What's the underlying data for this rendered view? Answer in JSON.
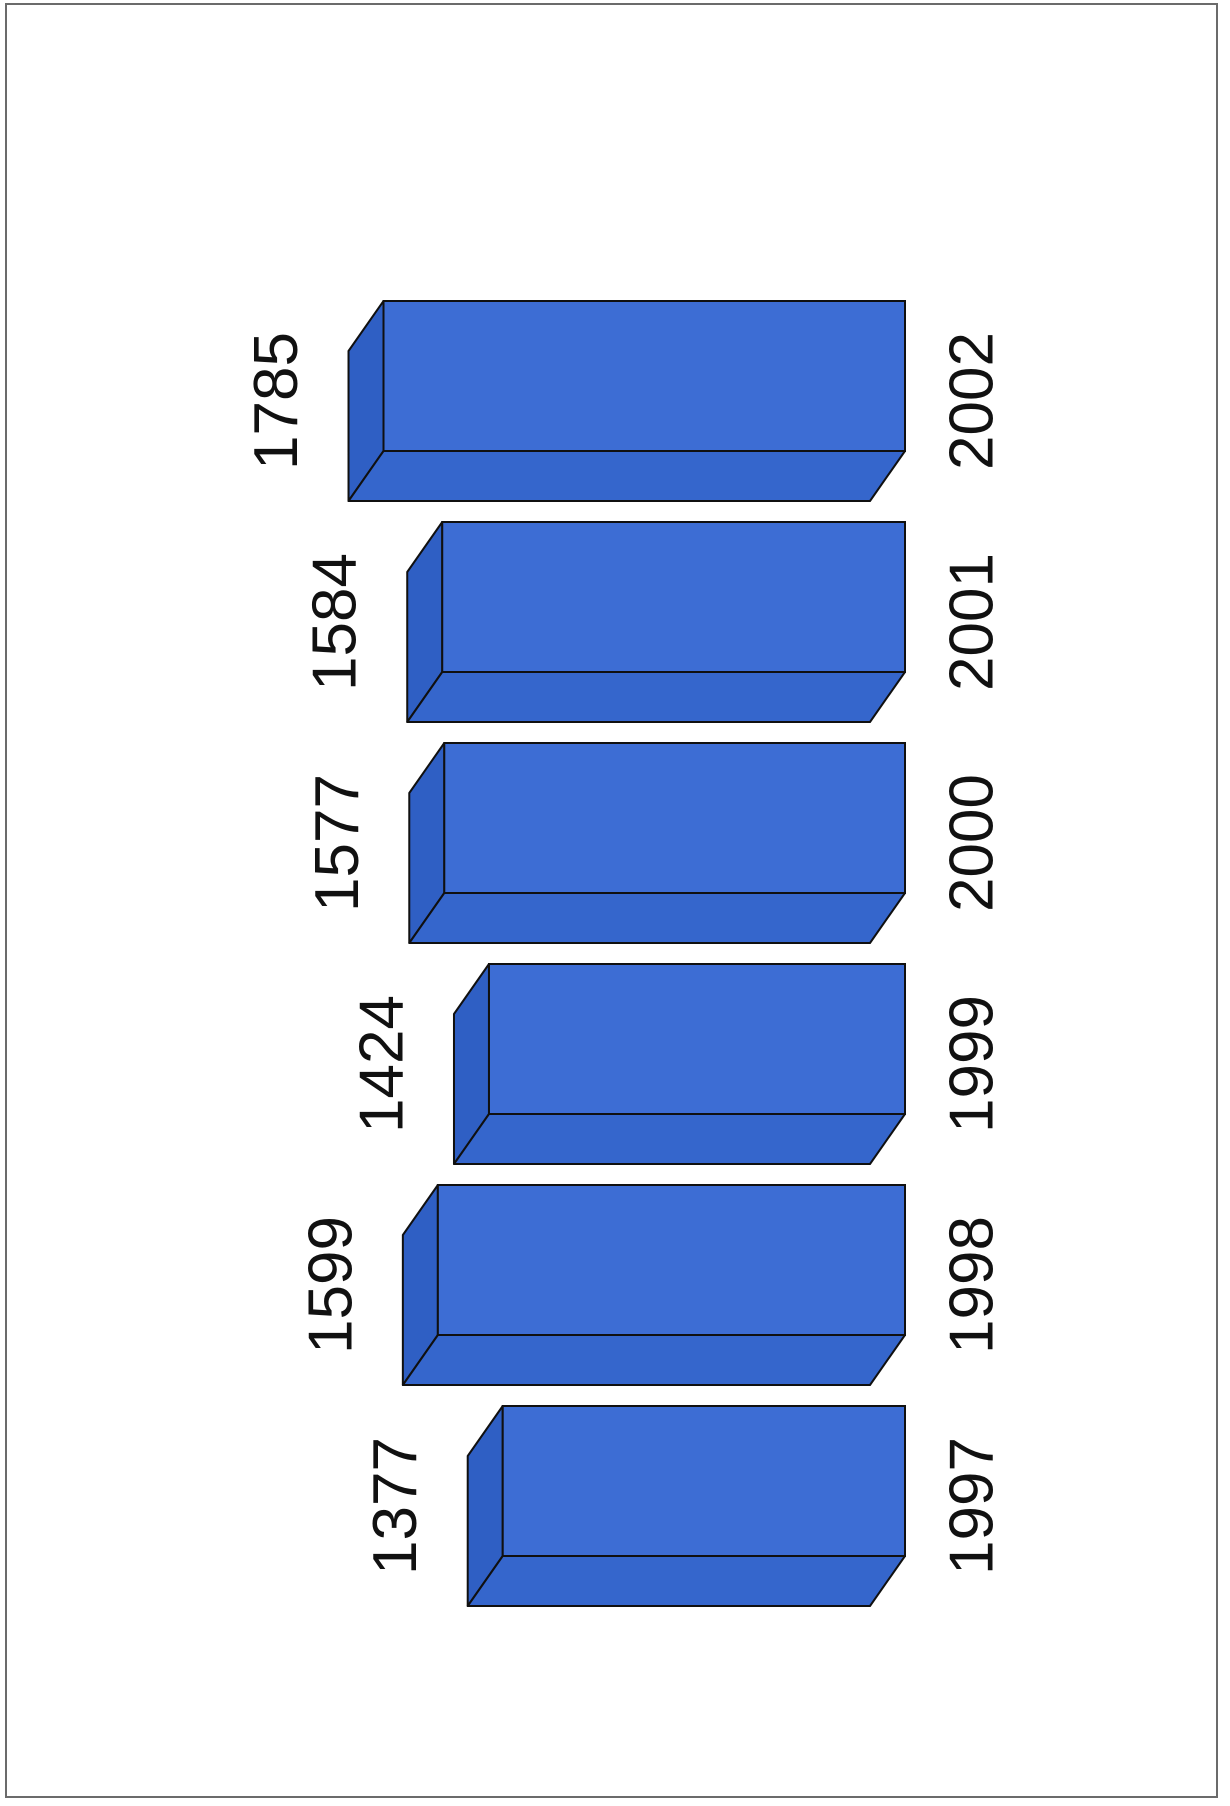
{
  "chart_data": {
    "type": "bar",
    "orientation": "horizontal-3d",
    "categories": [
      "1997",
      "1998",
      "1999",
      "2000",
      "2001",
      "2002"
    ],
    "values": [
      1377,
      1599,
      1424,
      1577,
      1584,
      1785
    ],
    "value_labels": [
      "1377",
      "1599",
      "1424",
      "1577",
      "1584",
      "1785"
    ],
    "title": "",
    "xlabel": "",
    "ylabel": "",
    "grid": false,
    "legend": "none",
    "colors": {
      "bar_face": "#3d6dd4",
      "bar_top": "#3566cc",
      "bar_side": "#2f5fc4",
      "edge": "#101010"
    }
  }
}
